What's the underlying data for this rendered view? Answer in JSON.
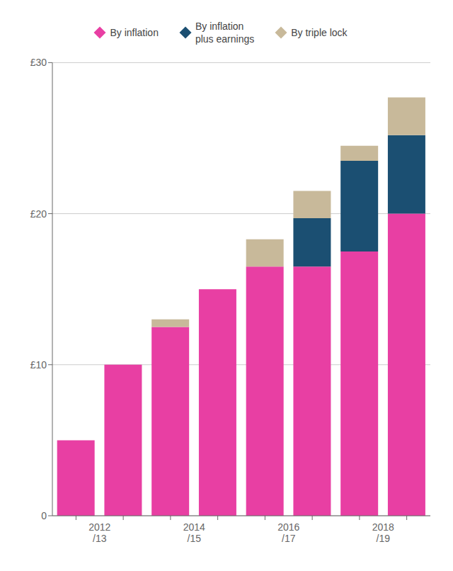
{
  "chart_data": {
    "type": "bar",
    "stacked": true,
    "categories": [
      "2012\n/13",
      null,
      "2014\n/15",
      null,
      "2016\n/17",
      null,
      "2018\n/19",
      null
    ],
    "series": [
      {
        "name": "By inflation",
        "color": "#e83fa3",
        "values": [
          5.0,
          10.0,
          12.5,
          15.0,
          16.5,
          16.5,
          17.5,
          20.0
        ]
      },
      {
        "name": "By inflation\nplus earnings",
        "color": "#1b4f72",
        "values": [
          0,
          0,
          0,
          0,
          0,
          3.2,
          6.0,
          5.2
        ]
      },
      {
        "name": "By triple lock",
        "color": "#c8b99a",
        "values": [
          0,
          0,
          0.5,
          0,
          1.8,
          1.8,
          1.0,
          2.5
        ]
      }
    ],
    "ylim": [
      0,
      30
    ],
    "yticks": [
      0,
      {
        "value": 10,
        "label": "£10"
      },
      {
        "value": 20,
        "label": "£20"
      },
      {
        "value": 30,
        "label": "£30"
      }
    ],
    "grid": true,
    "legend": "top"
  }
}
